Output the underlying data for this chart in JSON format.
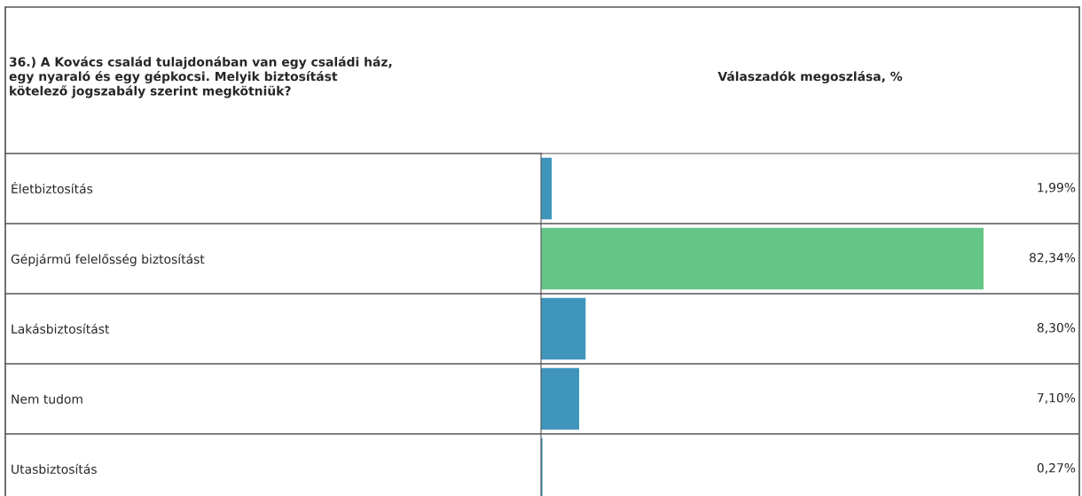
{
  "chart_data": {
    "type": "bar",
    "orientation": "horizontal",
    "title": "36.) A Kovács család tulajdonában van egy családi ház,\negy nyaraló és egy gépkocsi. Melyik biztosítást\nkötelező jogszabály szerint megkötniük?",
    "subtitle": "Válaszadók megoszlása, %",
    "categories": [
      "Életbiztosítás",
      "Gépjármű felelősség biztosítást",
      "Lakásbiztosítást",
      "Nem tudom",
      "Utasbiztosítás"
    ],
    "values": [
      1.99,
      82.34,
      8.3,
      7.1,
      0.27
    ],
    "colors": [
      "#3f95bb",
      "#65c586",
      "#3f95bb",
      "#3f95bb",
      "#3f95bb"
    ],
    "value_labels": [
      "1,99%",
      "82,34%",
      "8,30%",
      "7,10%",
      "0,27%"
    ],
    "grid": "y"
  }
}
